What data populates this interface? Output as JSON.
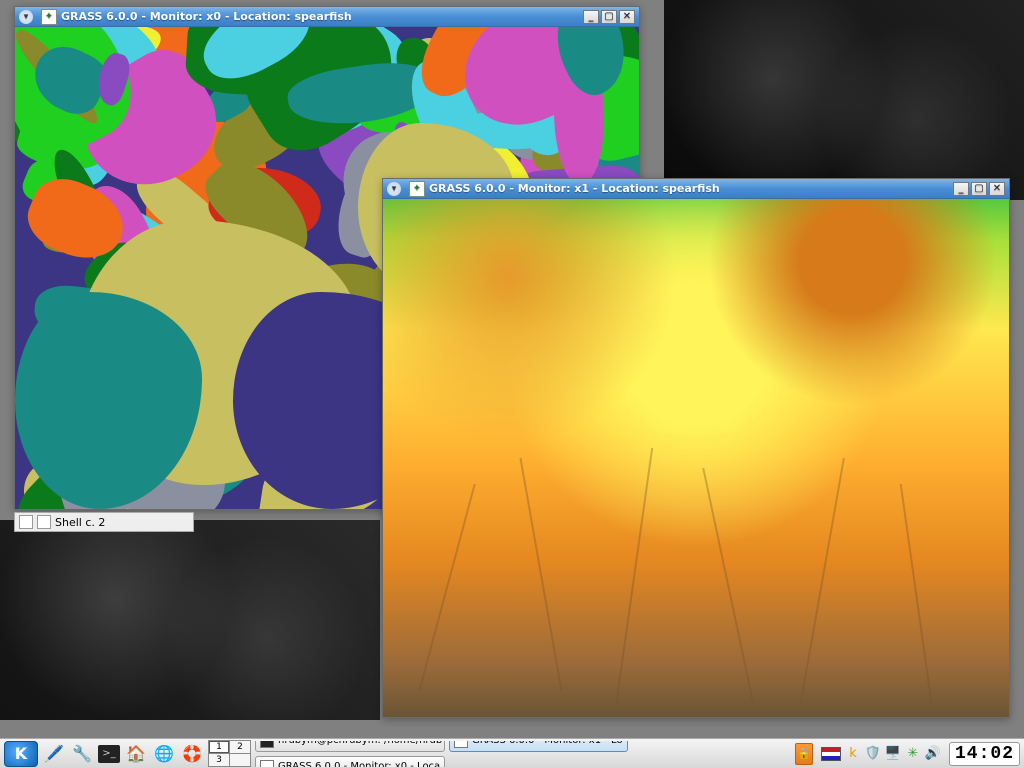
{
  "windows": {
    "x0": {
      "title": "GRASS 6.0.0 - Monitor: x0 - Location: spearfish",
      "map_colors": {
        "base": "#3b3584",
        "teal": "#1a8a84",
        "khaki": "#c8c060",
        "olive": "#8a8a2a",
        "green_bright": "#20d020",
        "green_dark": "#0a7a1a",
        "orange": "#f06a1a",
        "red": "#d02a1a",
        "magenta": "#d050c0",
        "purple": "#8a4ac0",
        "cyan": "#4ad0e0",
        "yellow": "#f0f030",
        "gray": "#8a90a0"
      }
    },
    "x1": {
      "title": "GRASS 6.0.0 - Monitor: x1 - Location: spearfish",
      "gradient_top": "#56c83e",
      "gradient_mid": "#ffe850",
      "gradient_low": "#e58820",
      "gradient_bot": "#6a5535"
    }
  },
  "sheet_label": "Shell c. 2",
  "taskbar": {
    "pager": [
      "1",
      "2",
      "3",
      ""
    ],
    "tasks": [
      {
        "label": "hrubym@pchrubym: /home/hrub",
        "icon_bg": "#222",
        "active": false
      },
      {
        "label": "GRASS 6.0.0 - Monitor: x1 - Lo",
        "icon_bg": "#fff",
        "active": true
      },
      {
        "label": "GRASS 6.0.0 - Monitor: x0 - Loca",
        "icon_bg": "#fff",
        "active": false
      }
    ],
    "clock": "14:02"
  }
}
